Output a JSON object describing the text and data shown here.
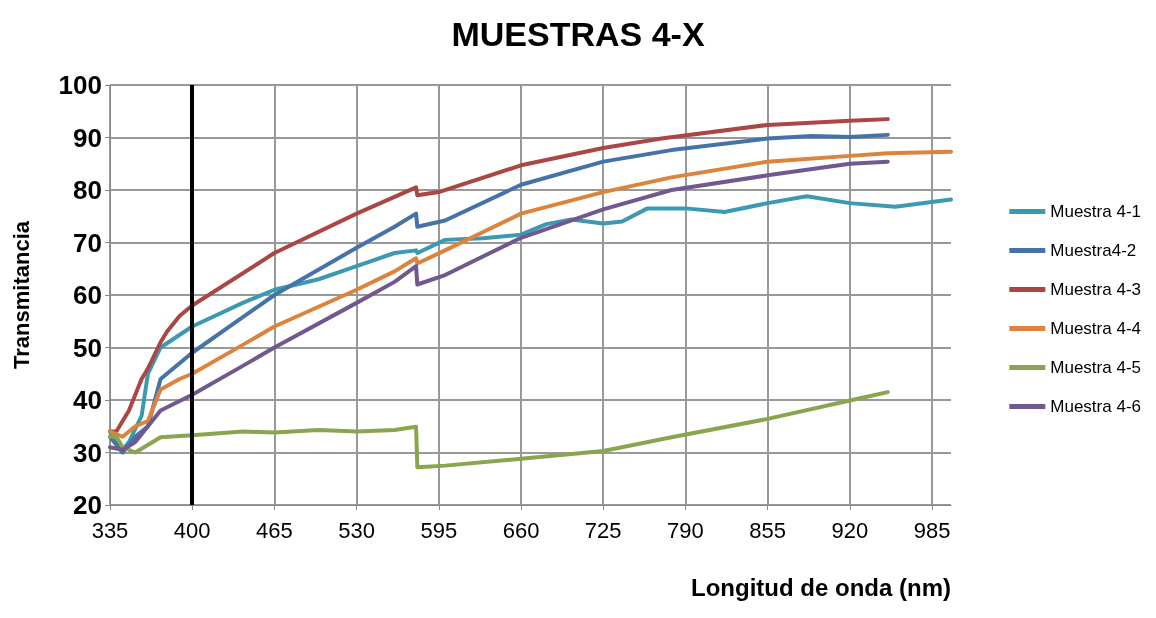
{
  "chart_data": {
    "type": "line",
    "title": "MUESTRAS 4-X",
    "xlabel": "Longitud de onda (nm)",
    "ylabel": "Transmitancia",
    "xlim": [
      335,
      1000
    ],
    "xticks": [
      335,
      400,
      465,
      530,
      595,
      660,
      725,
      790,
      855,
      920,
      985
    ],
    "ylim": [
      20,
      100
    ],
    "yticks": [
      20,
      30,
      40,
      50,
      60,
      70,
      80,
      90,
      100
    ],
    "grid": true,
    "legend": "right",
    "marker": "none",
    "ref_lines": [
      {
        "axis": "x",
        "value": 400,
        "color": "#000000"
      }
    ],
    "series": [
      {
        "name": "Muestra 4-1",
        "color": "#3b9ab2",
        "x": [
          335,
          340,
          345,
          350,
          360,
          365,
          375,
          400,
          440,
          465,
          500,
          530,
          560,
          577,
          578,
          600,
          630,
          660,
          680,
          700,
          725,
          740,
          760,
          790,
          821,
          855,
          886,
          920,
          956,
          1000
        ],
        "values": [
          34,
          32,
          30.5,
          32,
          37,
          45,
          50,
          54,
          58.5,
          61,
          63,
          65.5,
          68,
          68.5,
          68,
          70.5,
          70.8,
          71.5,
          73.5,
          74.4,
          73.6,
          74,
          76.5,
          76.5,
          75.8,
          77.5,
          78.8,
          77.5,
          76.8,
          78.2
        ]
      },
      {
        "name": "Muestra4-2",
        "color": "#4572a7",
        "x": [
          335,
          345,
          355,
          365,
          375,
          400,
          465,
          530,
          560,
          577,
          578,
          600,
          660,
          725,
          779,
          855,
          890,
          920,
          950
        ],
        "values": [
          33,
          30,
          33,
          35,
          44,
          49,
          60,
          69,
          73,
          75.5,
          73,
          74.2,
          81,
          85.4,
          87.6,
          89.8,
          90.3,
          90.1,
          90.5
        ]
      },
      {
        "name": "Muestra 4-3",
        "color": "#aa4643",
        "x": [
          335,
          340,
          350,
          360,
          365,
          375,
          380,
          390,
          400,
          465,
          530,
          577,
          578,
          595,
          660,
          725,
          771,
          855,
          920,
          950
        ],
        "values": [
          34,
          34,
          38,
          44,
          46,
          51,
          53,
          56,
          58,
          68,
          75.5,
          80.5,
          79,
          79.6,
          84.7,
          88,
          89.8,
          92.4,
          93.2,
          93.5
        ]
      },
      {
        "name": "Muestra 4-4",
        "color": "#db843d",
        "x": [
          335,
          345,
          355,
          365,
          375,
          390,
          400,
          440,
          465,
          530,
          560,
          577,
          578,
          600,
          630,
          660,
          725,
          779,
          855,
          920,
          950,
          1000
        ],
        "values": [
          34,
          33,
          35,
          36,
          42,
          44,
          45,
          50.5,
          54,
          61,
          64.5,
          67,
          66,
          68.5,
          72,
          75.5,
          79.6,
          82.4,
          85.4,
          86.5,
          87,
          87.3
        ]
      },
      {
        "name": "Muestra 4-5",
        "color": "#89a54e",
        "x": [
          335,
          340,
          345,
          355,
          375,
          400,
          440,
          465,
          500,
          530,
          560,
          577,
          578,
          600,
          660,
          725,
          779,
          855,
          920,
          950
        ],
        "values": [
          33,
          33,
          31,
          30,
          32.9,
          33.3,
          34,
          33.8,
          34.3,
          34,
          34.3,
          34.9,
          27.2,
          27.5,
          28.8,
          30.3,
          32.9,
          36.4,
          39.9,
          41.5
        ]
      },
      {
        "name": "Muestra 4-6",
        "color": "#71588f",
        "x": [
          335,
          345,
          355,
          365,
          375,
          400,
          440,
          465,
          530,
          560,
          577,
          578,
          600,
          660,
          725,
          779,
          855,
          920,
          950
        ],
        "values": [
          31,
          30.5,
          32,
          35,
          38,
          41,
          46.5,
          50,
          58.5,
          62.5,
          65.5,
          62,
          63.8,
          70.9,
          76.3,
          80,
          82.8,
          85,
          85.4
        ]
      }
    ]
  }
}
